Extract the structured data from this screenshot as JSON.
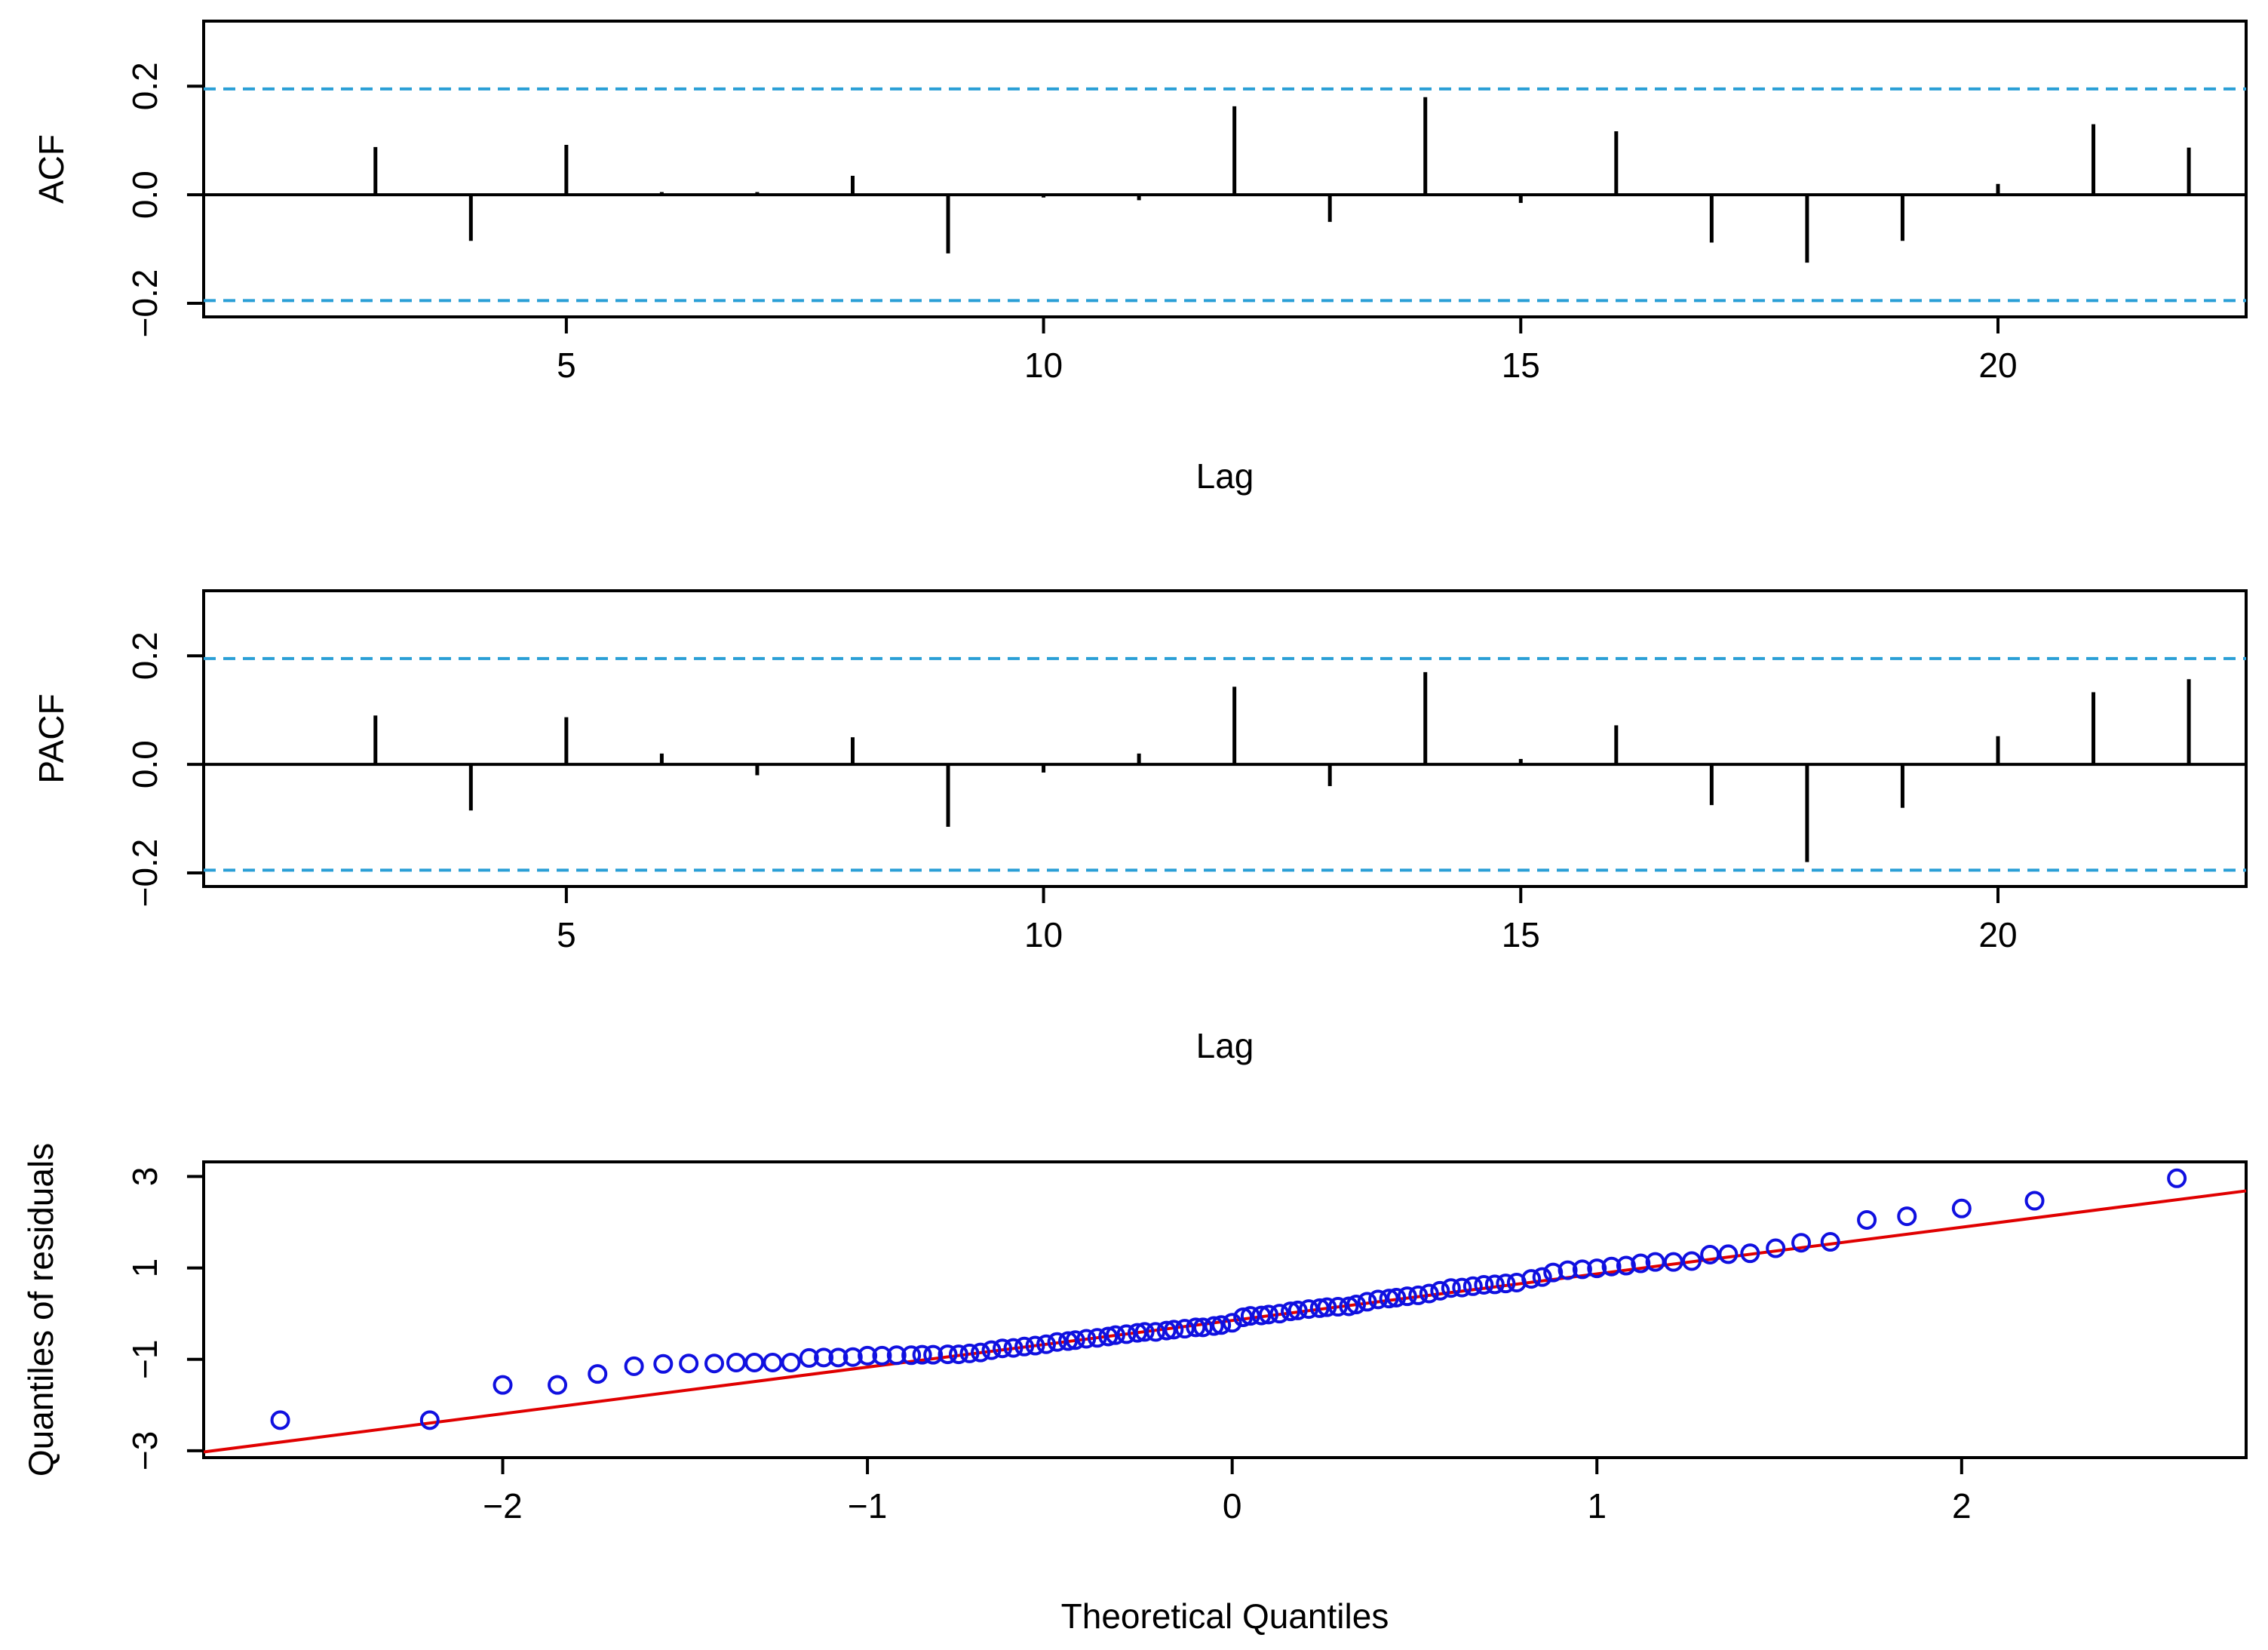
{
  "colors": {
    "stem": "#000000",
    "confidence_band": "#2a9fd6",
    "qq_points": "#1010e0",
    "qq_line": "#e00000",
    "axis": "#000000"
  },
  "chart_data": [
    {
      "type": "bar",
      "panel": "acf",
      "title": "",
      "xlabel": "Lag",
      "ylabel": "ACF",
      "xlim": [
        1.2,
        22.6
      ],
      "ylim": [
        -0.225,
        0.32
      ],
      "x_ticks": [
        5,
        10,
        15,
        20
      ],
      "y_ticks": [
        -0.2,
        0.0,
        0.2
      ],
      "y_tick_labels": [
        "−0.2",
        "0.0",
        "0.2"
      ],
      "confidence_limits": [
        0.195,
        -0.195
      ],
      "x": [
        3,
        4,
        5,
        6,
        7,
        8,
        9,
        10,
        11,
        12,
        13,
        14,
        15,
        16,
        17,
        18,
        19,
        20,
        21,
        22
      ],
      "values": [
        0.088,
        -0.085,
        0.092,
        0.005,
        0.005,
        0.035,
        -0.108,
        -0.005,
        -0.01,
        0.163,
        -0.05,
        0.18,
        -0.015,
        0.117,
        -0.088,
        -0.125,
        -0.085,
        0.02,
        0.13,
        0.087
      ]
    },
    {
      "type": "bar",
      "panel": "pacf",
      "title": "",
      "xlabel": "Lag",
      "ylabel": "PACF",
      "xlim": [
        1.2,
        22.6
      ],
      "ylim": [
        -0.225,
        0.32
      ],
      "x_ticks": [
        5,
        10,
        15,
        20
      ],
      "y_ticks": [
        -0.2,
        0.0,
        0.2
      ],
      "y_tick_labels": [
        "−0.2",
        "0.0",
        "0.2"
      ],
      "confidence_limits": [
        0.195,
        -0.195
      ],
      "x": [
        3,
        4,
        5,
        6,
        7,
        8,
        9,
        10,
        11,
        12,
        13,
        14,
        15,
        16,
        17,
        18,
        19,
        20,
        21,
        22
      ],
      "values": [
        0.09,
        -0.085,
        0.087,
        0.02,
        -0.02,
        0.05,
        -0.115,
        -0.015,
        0.02,
        0.143,
        -0.04,
        0.17,
        0.01,
        0.072,
        -0.075,
        -0.18,
        -0.08,
        0.052,
        0.133,
        0.157
      ]
    },
    {
      "type": "scatter",
      "panel": "qq",
      "title": "",
      "xlabel": "Theoretical Quantiles",
      "ylabel": "Quantiles of residuals",
      "xlim": [
        -2.82,
        2.78
      ],
      "ylim": [
        -3.15,
        3.32
      ],
      "x_ticks": [
        -2,
        -1,
        0,
        1,
        2
      ],
      "x_tick_labels": [
        "−2",
        "−1",
        "0",
        "1",
        "2"
      ],
      "y_ticks": [
        -3,
        -1,
        1,
        3
      ],
      "y_tick_labels": [
        "−3",
        "−1",
        "1",
        "3"
      ],
      "reference_line": {
        "slope": 1.02,
        "intercept": -0.15
      },
      "x": [
        -2.61,
        -2.2,
        -2.0,
        -1.85,
        -1.74,
        -1.64,
        -1.56,
        -1.49,
        -1.42,
        -1.36,
        -1.31,
        -1.26,
        -1.21,
        -1.16,
        -1.12,
        -1.08,
        -1.04,
        -1.0,
        -0.96,
        -0.92,
        -0.88,
        -0.85,
        -0.82,
        -0.78,
        -0.75,
        -0.72,
        -0.69,
        -0.66,
        -0.63,
        -0.6,
        -0.57,
        -0.54,
        -0.51,
        -0.48,
        -0.45,
        -0.43,
        -0.4,
        -0.37,
        -0.34,
        -0.32,
        -0.29,
        -0.26,
        -0.24,
        -0.21,
        -0.18,
        -0.16,
        -0.13,
        -0.1,
        -0.08,
        -0.05,
        -0.03,
        0.0,
        0.03,
        0.05,
        0.08,
        0.1,
        0.13,
        0.16,
        0.18,
        0.21,
        0.24,
        0.26,
        0.29,
        0.32,
        0.34,
        0.37,
        0.4,
        0.43,
        0.45,
        0.48,
        0.51,
        0.54,
        0.57,
        0.6,
        0.63,
        0.66,
        0.69,
        0.72,
        0.75,
        0.78,
        0.82,
        0.85,
        0.88,
        0.92,
        0.96,
        1.0,
        1.04,
        1.08,
        1.12,
        1.16,
        1.21,
        1.26,
        1.31,
        1.36,
        1.42,
        1.49,
        1.56,
        1.64,
        1.74,
        1.85,
        2.0,
        2.2,
        2.59
      ],
      "values": [
        -2.33,
        -2.33,
        -1.56,
        -1.56,
        -1.32,
        -1.15,
        -1.1,
        -1.09,
        -1.09,
        -1.07,
        -1.07,
        -1.07,
        -1.07,
        -0.97,
        -0.96,
        -0.96,
        -0.95,
        -0.92,
        -0.92,
        -0.91,
        -0.91,
        -0.9,
        -0.9,
        -0.89,
        -0.89,
        -0.87,
        -0.85,
        -0.8,
        -0.76,
        -0.75,
        -0.72,
        -0.7,
        -0.67,
        -0.62,
        -0.6,
        -0.58,
        -0.55,
        -0.53,
        -0.5,
        -0.47,
        -0.45,
        -0.42,
        -0.4,
        -0.4,
        -0.37,
        -0.35,
        -0.33,
        -0.3,
        -0.3,
        -0.27,
        -0.25,
        -0.2,
        -0.08,
        -0.05,
        -0.04,
        -0.02,
        0.0,
        0.05,
        0.07,
        0.1,
        0.12,
        0.14,
        0.15,
        0.16,
        0.2,
        0.26,
        0.31,
        0.33,
        0.35,
        0.38,
        0.4,
        0.44,
        0.5,
        0.56,
        0.57,
        0.6,
        0.63,
        0.64,
        0.66,
        0.68,
        0.76,
        0.8,
        0.9,
        0.95,
        0.97,
        0.99,
        1.03,
        1.05,
        1.1,
        1.13,
        1.13,
        1.15,
        1.29,
        1.3,
        1.32,
        1.43,
        1.55,
        1.57,
        2.05,
        2.13,
        2.3,
        2.47,
        2.96
      ]
    }
  ]
}
